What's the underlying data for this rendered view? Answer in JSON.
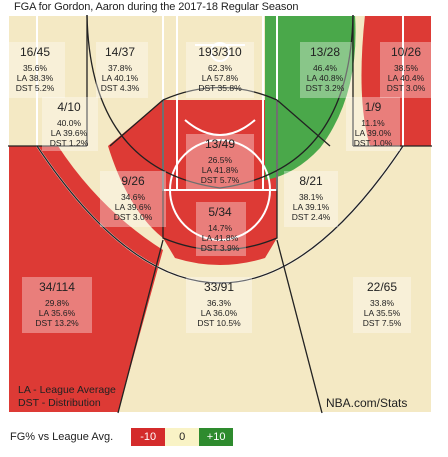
{
  "title": "FGA for Gordon, Aaron during the 2017-18 Regular Season",
  "notes": {
    "league_average": "LA - League Average",
    "distribution": "DST - Distribution",
    "brand": "NBA.com/Stats"
  },
  "legend": {
    "label": "FG% vs League Avg.",
    "low": "-10",
    "mid": "0",
    "high": "+10",
    "low_color": "#d42b2b",
    "mid_color": "#f9f3c6",
    "high_color": "#2e8b2e"
  },
  "colors": {
    "red": "#dd3a35",
    "green": "#4aa84a",
    "court": "#f4e9c4",
    "lines": "#ffffff"
  },
  "chart_data": {
    "type": "shot chart",
    "zones": [
      {
        "id": "left-corner-three",
        "fgm_fga": "16/45",
        "fg_pct": "35.6%",
        "la": "LA 38.3%",
        "dst": "DST 5.2%",
        "fill": "court"
      },
      {
        "id": "left-baseline-two",
        "fgm_fga": "14/37",
        "fg_pct": "37.8%",
        "la": "LA 40.1%",
        "dst": "DST 4.3%",
        "fill": "court"
      },
      {
        "id": "center-top",
        "fgm_fga": "193/310",
        "fg_pct": "62.3%",
        "la": "LA 57.8%",
        "dst": "DST 35.8%",
        "fill": "court"
      },
      {
        "id": "right-baseline-two",
        "fgm_fga": "13/28",
        "fg_pct": "46.4%",
        "la": "LA 40.8%",
        "dst": "DST 3.2%",
        "fill": "green"
      },
      {
        "id": "right-corner-three",
        "fgm_fga": "10/26",
        "fg_pct": "38.5%",
        "la": "LA 40.4%",
        "dst": "DST 3.0%",
        "fill": "court"
      },
      {
        "id": "left-short-baseline",
        "fgm_fga": "4/10",
        "fg_pct": "40.0%",
        "la": "LA 39.6%",
        "dst": "DST 1.2%",
        "fill": "court"
      },
      {
        "id": "right-short-baseline",
        "fgm_fga": "1/9",
        "fg_pct": "11.1%",
        "la": "LA 39.0%",
        "dst": "DST 1.0%",
        "fill": "red"
      },
      {
        "id": "paint-non-ra",
        "fgm_fga": "13/49",
        "fg_pct": "26.5%",
        "la": "LA 41.8%",
        "dst": "DST 5.7%",
        "fill": "red"
      },
      {
        "id": "left-elbow",
        "fgm_fga": "9/26",
        "fg_pct": "34.6%",
        "la": "LA 39.6%",
        "dst": "DST 3.0%",
        "fill": "red"
      },
      {
        "id": "right-elbow",
        "fgm_fga": "8/21",
        "fg_pct": "38.1%",
        "la": "LA 39.1%",
        "dst": "DST 2.4%",
        "fill": "court"
      },
      {
        "id": "top-key",
        "fgm_fga": "5/34",
        "fg_pct": "14.7%",
        "la": "LA 41.8%",
        "dst": "DST 3.9%",
        "fill": "red"
      },
      {
        "id": "left-wing-three",
        "fgm_fga": "34/114",
        "fg_pct": "29.8%",
        "la": "LA 35.6%",
        "dst": "DST 13.2%",
        "fill": "red"
      },
      {
        "id": "center-three",
        "fgm_fga": "33/91",
        "fg_pct": "36.3%",
        "la": "LA 36.0%",
        "dst": "DST 10.5%",
        "fill": "court"
      },
      {
        "id": "right-wing-three",
        "fgm_fga": "22/65",
        "fg_pct": "33.8%",
        "la": "LA 35.5%",
        "dst": "DST 7.5%",
        "fill": "court"
      }
    ]
  }
}
